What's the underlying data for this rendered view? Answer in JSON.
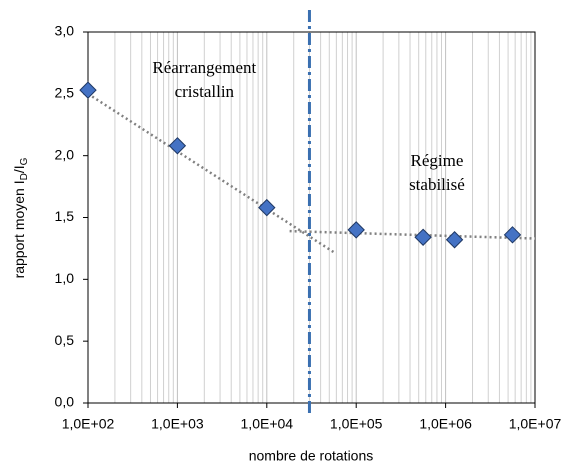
{
  "chart_data": {
    "type": "scatter",
    "x_label": "nombre de rotations",
    "y_label_parts": [
      "rapport moyen I",
      "D",
      "/I",
      "G"
    ],
    "x": [
      100,
      1000,
      10000,
      100000,
      560000,
      1260000,
      5600000
    ],
    "values": [
      2.53,
      2.08,
      1.58,
      1.4,
      1.34,
      1.32,
      1.36
    ],
    "color": "#4472c4",
    "x_log": true,
    "xlim": [
      100,
      10000000
    ],
    "ylim": [
      0,
      3
    ],
    "xticks": [
      {
        "value": 100,
        "label": "1,0E+02"
      },
      {
        "value": 1000,
        "label": "1,0E+03"
      },
      {
        "value": 10000,
        "label": "1,0E+04"
      },
      {
        "value": 100000,
        "label": "1,0E+05"
      },
      {
        "value": 1000000,
        "label": "1,0E+06"
      },
      {
        "value": 10000000,
        "label": "1,0E+07"
      }
    ],
    "x_minor_ticks": [
      200,
      300,
      400,
      500,
      600,
      700,
      800,
      900,
      2000,
      3000,
      4000,
      5000,
      6000,
      7000,
      8000,
      9000,
      20000,
      30000,
      40000,
      50000,
      60000,
      70000,
      80000,
      90000,
      200000,
      300000,
      400000,
      500000,
      600000,
      700000,
      800000,
      900000,
      2000000,
      3000000,
      4000000,
      5000000,
      6000000,
      7000000,
      8000000,
      9000000
    ],
    "yticks": [
      {
        "value": 0,
        "label": "0,0"
      },
      {
        "value": 0.5,
        "label": "0,5"
      },
      {
        "value": 1,
        "label": "1,0"
      },
      {
        "value": 1.5,
        "label": "1,5"
      },
      {
        "value": 2,
        "label": "2,0"
      },
      {
        "value": 2.5,
        "label": "2,5"
      },
      {
        "value": 3,
        "label": "3,0"
      }
    ],
    "trendlines": [
      {
        "x": [
          100,
          56000
        ],
        "values": [
          2.5,
          1.22
        ],
        "color": "#808080"
      },
      {
        "x": [
          18000,
          10000000
        ],
        "values": [
          1.39,
          1.33
        ],
        "color": "#808080"
      }
    ],
    "vline_x": 30000,
    "vline_color": "#3a6fb0",
    "annotations": [
      {
        "lines": [
          "Réarrangement",
          "cristallin"
        ],
        "x": 2000,
        "y": 2.7
      },
      {
        "lines": [
          "Régime",
          "stabilisé"
        ],
        "x": 800000,
        "y": 1.95
      }
    ]
  }
}
